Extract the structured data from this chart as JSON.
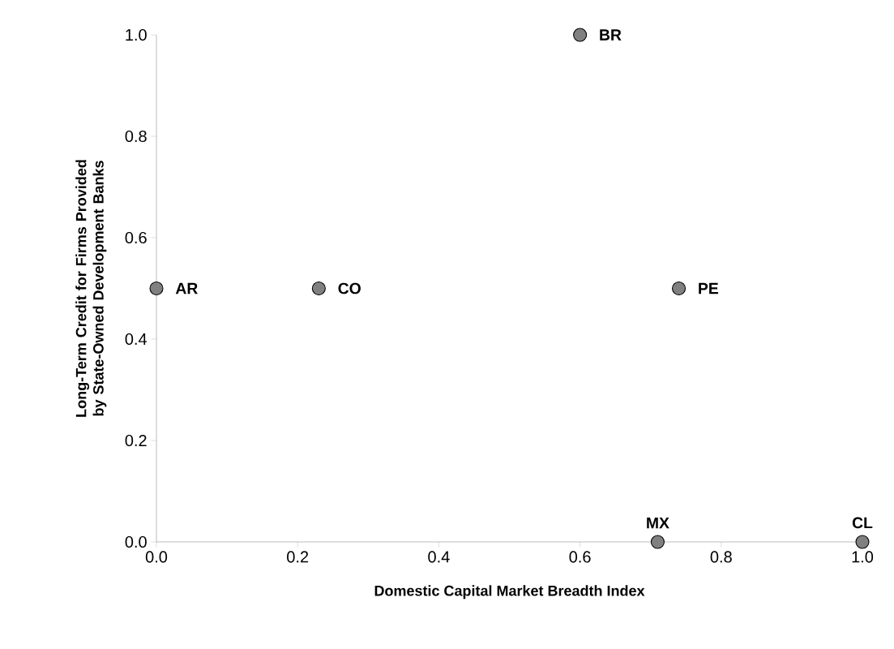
{
  "chart_data": {
    "type": "scatter",
    "xlabel": "Domestic Capital Market Breadth Index",
    "ylabel": "Long-Term Credit for Firms Provided by State-Owned Development Banks",
    "x": [
      0.0,
      0.23,
      0.6,
      0.74,
      0.71,
      1.0
    ],
    "series": [
      {
        "color": "#808080",
        "values": [
          0.5,
          0.5,
          1.0,
          0.5,
          0.0,
          0.0
        ]
      }
    ],
    "annotations": [
      {
        "text": "AR",
        "x": 0.0,
        "y": 0.5
      },
      {
        "text": "CO",
        "x": 0.23,
        "y": 0.5
      },
      {
        "text": "BR",
        "x": 0.6,
        "y": 1.0
      },
      {
        "text": "PE",
        "x": 0.74,
        "y": 0.5
      },
      {
        "text": "MX",
        "x": 0.71,
        "y": 0.0
      },
      {
        "text": "CL",
        "x": 1.0,
        "y": 0.0
      }
    ],
    "xlim": [
      0.0,
      1.0
    ],
    "ylim": [
      0.0,
      1.0
    ],
    "xticks": [
      {
        "value": 0.0,
        "label": "0.0"
      },
      {
        "value": 0.2,
        "label": "0.2"
      },
      {
        "value": 0.4,
        "label": "0.4"
      },
      {
        "value": 0.6,
        "label": "0.6"
      },
      {
        "value": 0.8,
        "label": "0.8"
      },
      {
        "value": 1.0,
        "label": "1.0"
      }
    ],
    "yticks": [
      {
        "value": 0.0,
        "label": "0.0"
      },
      {
        "value": 0.2,
        "label": "0.2"
      },
      {
        "value": 0.4,
        "label": "0.4"
      },
      {
        "value": 0.6,
        "label": "0.6"
      },
      {
        "value": 0.8,
        "label": "0.8"
      },
      {
        "value": 1.0,
        "label": "1.0"
      }
    ],
    "marker": "circle",
    "grid": false
  }
}
